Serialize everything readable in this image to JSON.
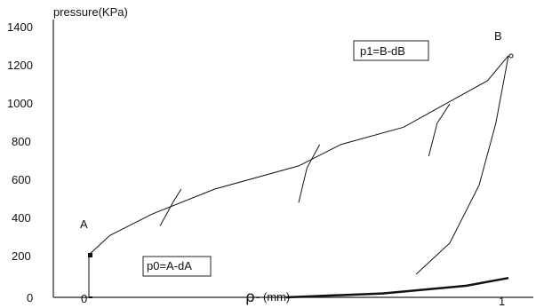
{
  "chart_data": {
    "type": "line",
    "ylabel": "pressure(KPa)",
    "xlabel_symbol": "ρ",
    "xlabel_unit": "- (mm)",
    "y_ticks": [
      "1400",
      "1200",
      "1000",
      "800",
      "600",
      "400",
      "200",
      "0"
    ],
    "x_ticks": [
      "0",
      "1"
    ],
    "ylim": [
      0,
      1400
    ],
    "xlim": [
      0,
      1.1
    ],
    "grid": false,
    "annotations": {
      "point_a": "A",
      "point_b": "B",
      "box_p1": "p1=B-dB",
      "box_p0": "p0=A-dA"
    },
    "series": [
      {
        "values": [
          [
            0.0,
            0
          ],
          [
            0.0,
            220
          ],
          [
            0.05,
            320
          ],
          [
            0.15,
            430
          ],
          [
            0.3,
            560
          ],
          [
            0.5,
            680
          ],
          [
            0.6,
            790
          ],
          [
            0.75,
            880
          ],
          [
            0.85,
            1000
          ],
          [
            0.95,
            1120
          ],
          [
            1.0,
            1250
          ]
        ]
      },
      {
        "values": [
          [
            0.17,
            370
          ],
          [
            0.2,
            490
          ],
          [
            0.22,
            560
          ]
        ]
      },
      {
        "values": [
          [
            0.5,
            490
          ],
          [
            0.52,
            670
          ],
          [
            0.55,
            790
          ]
        ]
      },
      {
        "values": [
          [
            0.81,
            730
          ],
          [
            0.83,
            900
          ],
          [
            0.86,
            1000
          ]
        ]
      },
      {
        "values": [
          [
            0.78,
            120
          ],
          [
            0.86,
            280
          ],
          [
            0.93,
            580
          ],
          [
            0.97,
            900
          ],
          [
            1.0,
            1250
          ]
        ]
      },
      {
        "values": [
          [
            0.47,
            0
          ],
          [
            0.7,
            20
          ],
          [
            0.9,
            60
          ],
          [
            1.0,
            100
          ]
        ]
      }
    ]
  }
}
